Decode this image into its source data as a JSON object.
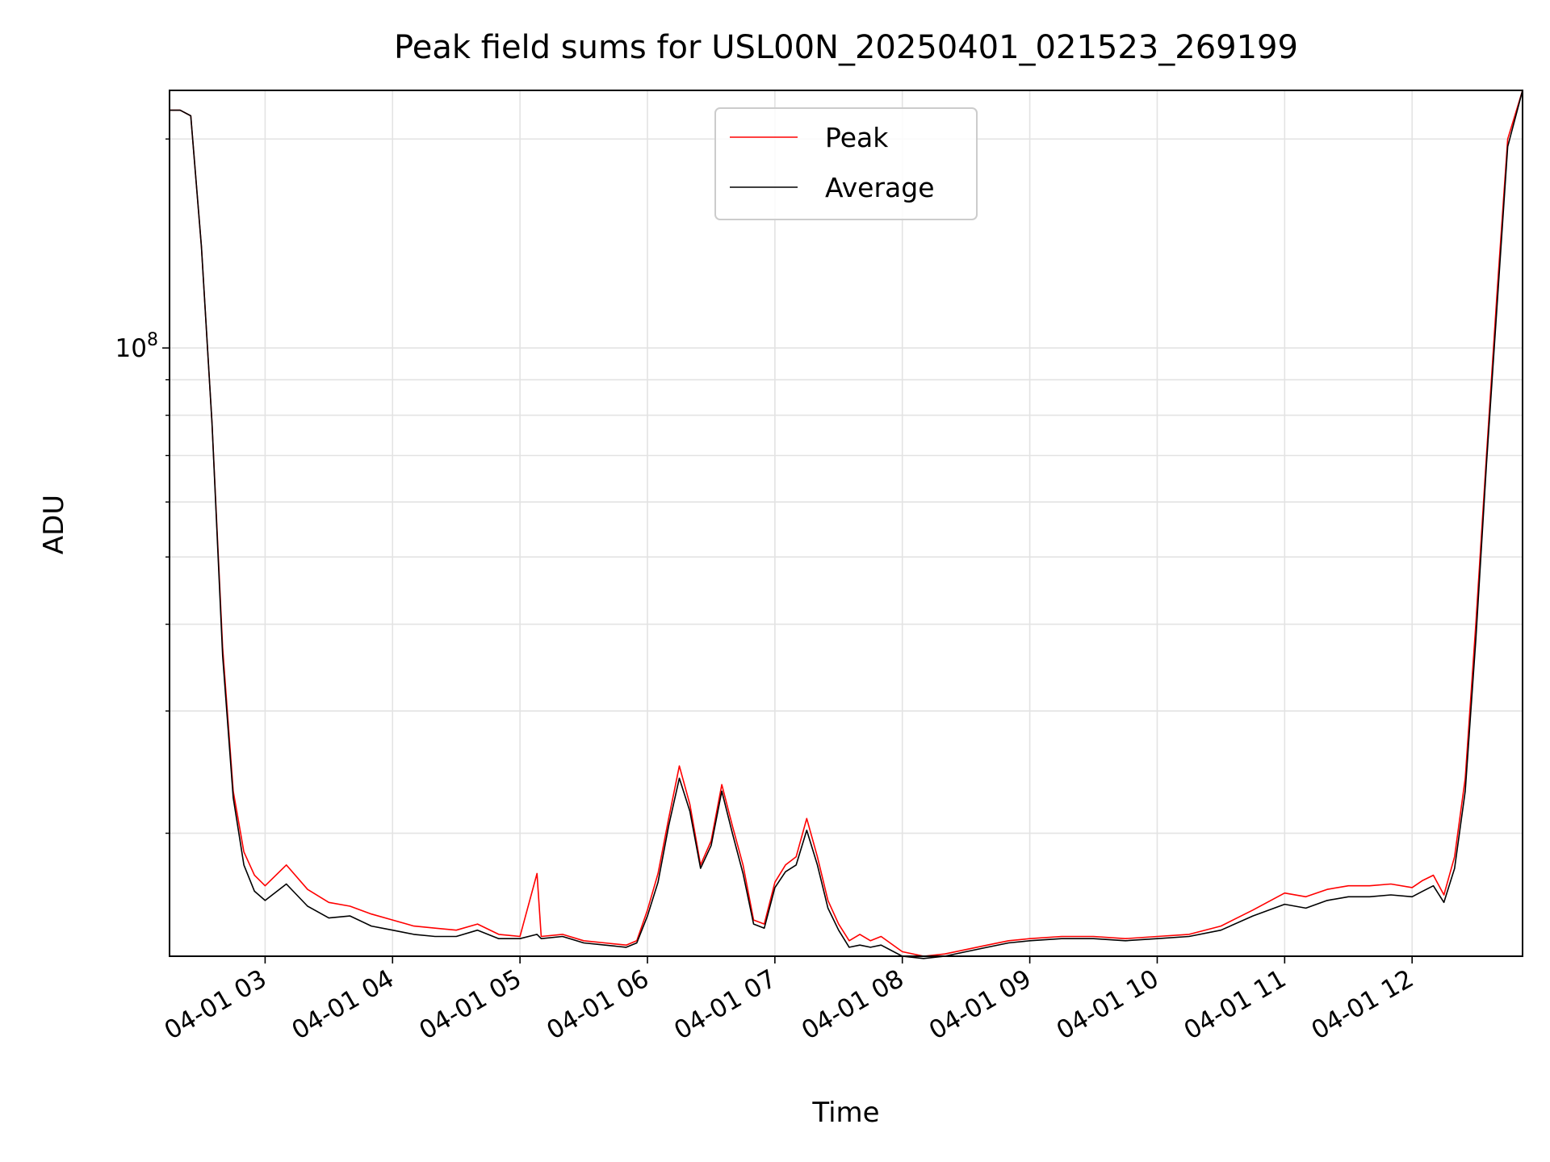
{
  "chart_data": {
    "type": "line",
    "title": "Peak field sums for USL00N_20250401_021523_269199",
    "xlabel": "Time",
    "ylabel": "ADU",
    "y_scale": "log",
    "grid": true,
    "legend_position": "top-center",
    "x_range": [
      "2025-04-01 02:15",
      "2025-04-01 12:52"
    ],
    "ylim": [
      13300000,
      235000000
    ],
    "x_ticks": [
      "04-01 03",
      "04-01 04",
      "04-01 05",
      "04-01 06",
      "04-01 07",
      "04-01 08",
      "04-01 09",
      "04-01 10",
      "04-01 11",
      "04-01 12"
    ],
    "y_tick_major": {
      "base": "10",
      "exponent": "8"
    },
    "series": [
      {
        "name": "Peak",
        "color": "#ff0000",
        "x": [
          "2025-04-01 02:15",
          "2025-04-01 02:20",
          "2025-04-01 02:25",
          "2025-04-01 02:30",
          "2025-04-01 02:35",
          "2025-04-01 02:40",
          "2025-04-01 02:45",
          "2025-04-01 02:50",
          "2025-04-01 02:55",
          "2025-04-01 03:00",
          "2025-04-01 03:10",
          "2025-04-01 03:20",
          "2025-04-01 03:30",
          "2025-04-01 03:40",
          "2025-04-01 03:50",
          "2025-04-01 04:00",
          "2025-04-01 04:10",
          "2025-04-01 04:20",
          "2025-04-01 04:30",
          "2025-04-01 04:40",
          "2025-04-01 04:50",
          "2025-04-01 05:00",
          "2025-04-01 05:08",
          "2025-04-01 05:10",
          "2025-04-01 05:20",
          "2025-04-01 05:30",
          "2025-04-01 05:40",
          "2025-04-01 05:50",
          "2025-04-01 05:55",
          "2025-04-01 06:00",
          "2025-04-01 06:05",
          "2025-04-01 06:10",
          "2025-04-01 06:15",
          "2025-04-01 06:20",
          "2025-04-01 06:25",
          "2025-04-01 06:30",
          "2025-04-01 06:35",
          "2025-04-01 06:40",
          "2025-04-01 06:45",
          "2025-04-01 06:50",
          "2025-04-01 06:55",
          "2025-04-01 07:00",
          "2025-04-01 07:05",
          "2025-04-01 07:10",
          "2025-04-01 07:15",
          "2025-04-01 07:20",
          "2025-04-01 07:25",
          "2025-04-01 07:30",
          "2025-04-01 07:35",
          "2025-04-01 07:40",
          "2025-04-01 07:45",
          "2025-04-01 07:50",
          "2025-04-01 08:00",
          "2025-04-01 08:10",
          "2025-04-01 08:20",
          "2025-04-01 08:30",
          "2025-04-01 08:40",
          "2025-04-01 08:50",
          "2025-04-01 09:00",
          "2025-04-01 09:15",
          "2025-04-01 09:30",
          "2025-04-01 09:45",
          "2025-04-01 10:00",
          "2025-04-01 10:15",
          "2025-04-01 10:30",
          "2025-04-01 10:45",
          "2025-04-01 11:00",
          "2025-04-01 11:10",
          "2025-04-01 11:20",
          "2025-04-01 11:30",
          "2025-04-01 11:40",
          "2025-04-01 11:50",
          "2025-04-01 12:00",
          "2025-04-01 12:05",
          "2025-04-01 12:10",
          "2025-04-01 12:15",
          "2025-04-01 12:20",
          "2025-04-01 12:25",
          "2025-04-01 12:30",
          "2025-04-01 12:35",
          "2025-04-01 12:40",
          "2025-04-01 12:45",
          "2025-04-01 12:52"
        ],
        "y": [
          220000000,
          220000000,
          216000000,
          140000000,
          78000000,
          37000000,
          23000000,
          18800000,
          17400000,
          16800000,
          18000000,
          16600000,
          15900000,
          15700000,
          15300000,
          15000000,
          14700000,
          14600000,
          14500000,
          14800000,
          14300000,
          14200000,
          17500000,
          14200000,
          14300000,
          14000000,
          13900000,
          13800000,
          14000000,
          15500000,
          17500000,
          21000000,
          25000000,
          22000000,
          18000000,
          19500000,
          23500000,
          20500000,
          18000000,
          15000000,
          14800000,
          17000000,
          18000000,
          18500000,
          21000000,
          18500000,
          16000000,
          14800000,
          14000000,
          14300000,
          14000000,
          14200000,
          13500000,
          13300000,
          13400000,
          13600000,
          13800000,
          14000000,
          14100000,
          14200000,
          14200000,
          14100000,
          14200000,
          14300000,
          14700000,
          15500000,
          16400000,
          16200000,
          16600000,
          16800000,
          16800000,
          16900000,
          16700000,
          17100000,
          17400000,
          16300000,
          18500000,
          24000000,
          40000000,
          70000000,
          120000000,
          200000000,
          235000000
        ]
      },
      {
        "name": "Average",
        "color": "#000000",
        "x": [
          "2025-04-01 02:15",
          "2025-04-01 02:20",
          "2025-04-01 02:25",
          "2025-04-01 02:30",
          "2025-04-01 02:35",
          "2025-04-01 02:40",
          "2025-04-01 02:45",
          "2025-04-01 02:50",
          "2025-04-01 02:55",
          "2025-04-01 03:00",
          "2025-04-01 03:10",
          "2025-04-01 03:20",
          "2025-04-01 03:30",
          "2025-04-01 03:40",
          "2025-04-01 03:50",
          "2025-04-01 04:00",
          "2025-04-01 04:10",
          "2025-04-01 04:20",
          "2025-04-01 04:30",
          "2025-04-01 04:40",
          "2025-04-01 04:50",
          "2025-04-01 05:00",
          "2025-04-01 05:08",
          "2025-04-01 05:10",
          "2025-04-01 05:20",
          "2025-04-01 05:30",
          "2025-04-01 05:40",
          "2025-04-01 05:50",
          "2025-04-01 05:55",
          "2025-04-01 06:00",
          "2025-04-01 06:05",
          "2025-04-01 06:10",
          "2025-04-01 06:15",
          "2025-04-01 06:20",
          "2025-04-01 06:25",
          "2025-04-01 06:30",
          "2025-04-01 06:35",
          "2025-04-01 06:40",
          "2025-04-01 06:45",
          "2025-04-01 06:50",
          "2025-04-01 06:55",
          "2025-04-01 07:00",
          "2025-04-01 07:05",
          "2025-04-01 07:10",
          "2025-04-01 07:15",
          "2025-04-01 07:20",
          "2025-04-01 07:25",
          "2025-04-01 07:30",
          "2025-04-01 07:35",
          "2025-04-01 07:40",
          "2025-04-01 07:45",
          "2025-04-01 07:50",
          "2025-04-01 08:00",
          "2025-04-01 08:10",
          "2025-04-01 08:20",
          "2025-04-01 08:30",
          "2025-04-01 08:40",
          "2025-04-01 08:50",
          "2025-04-01 09:00",
          "2025-04-01 09:15",
          "2025-04-01 09:30",
          "2025-04-01 09:45",
          "2025-04-01 10:00",
          "2025-04-01 10:15",
          "2025-04-01 10:30",
          "2025-04-01 10:45",
          "2025-04-01 11:00",
          "2025-04-01 11:10",
          "2025-04-01 11:20",
          "2025-04-01 11:30",
          "2025-04-01 11:40",
          "2025-04-01 11:50",
          "2025-04-01 12:00",
          "2025-04-01 12:05",
          "2025-04-01 12:10",
          "2025-04-01 12:15",
          "2025-04-01 12:20",
          "2025-04-01 12:25",
          "2025-04-01 12:30",
          "2025-04-01 12:35",
          "2025-04-01 12:40",
          "2025-04-01 12:45",
          "2025-04-01 12:52"
        ],
        "y": [
          220000000,
          220000000,
          216000000,
          140000000,
          78000000,
          36000000,
          22500000,
          18000000,
          16500000,
          16000000,
          16900000,
          15700000,
          15100000,
          15200000,
          14700000,
          14500000,
          14300000,
          14200000,
          14200000,
          14500000,
          14100000,
          14100000,
          14300000,
          14100000,
          14200000,
          13900000,
          13800000,
          13700000,
          13900000,
          15200000,
          17000000,
          20500000,
          24000000,
          21500000,
          17800000,
          19200000,
          23000000,
          20000000,
          17500000,
          14800000,
          14600000,
          16700000,
          17600000,
          18000000,
          20200000,
          18000000,
          15600000,
          14500000,
          13700000,
          13800000,
          13700000,
          13800000,
          13300000,
          13200000,
          13300000,
          13500000,
          13700000,
          13900000,
          14000000,
          14100000,
          14100000,
          14000000,
          14100000,
          14200000,
          14500000,
          15200000,
          15800000,
          15600000,
          16000000,
          16200000,
          16200000,
          16300000,
          16200000,
          16500000,
          16800000,
          15900000,
          17800000,
          23000000,
          38000000,
          68000000,
          115000000,
          195000000,
          235000000
        ]
      }
    ]
  }
}
